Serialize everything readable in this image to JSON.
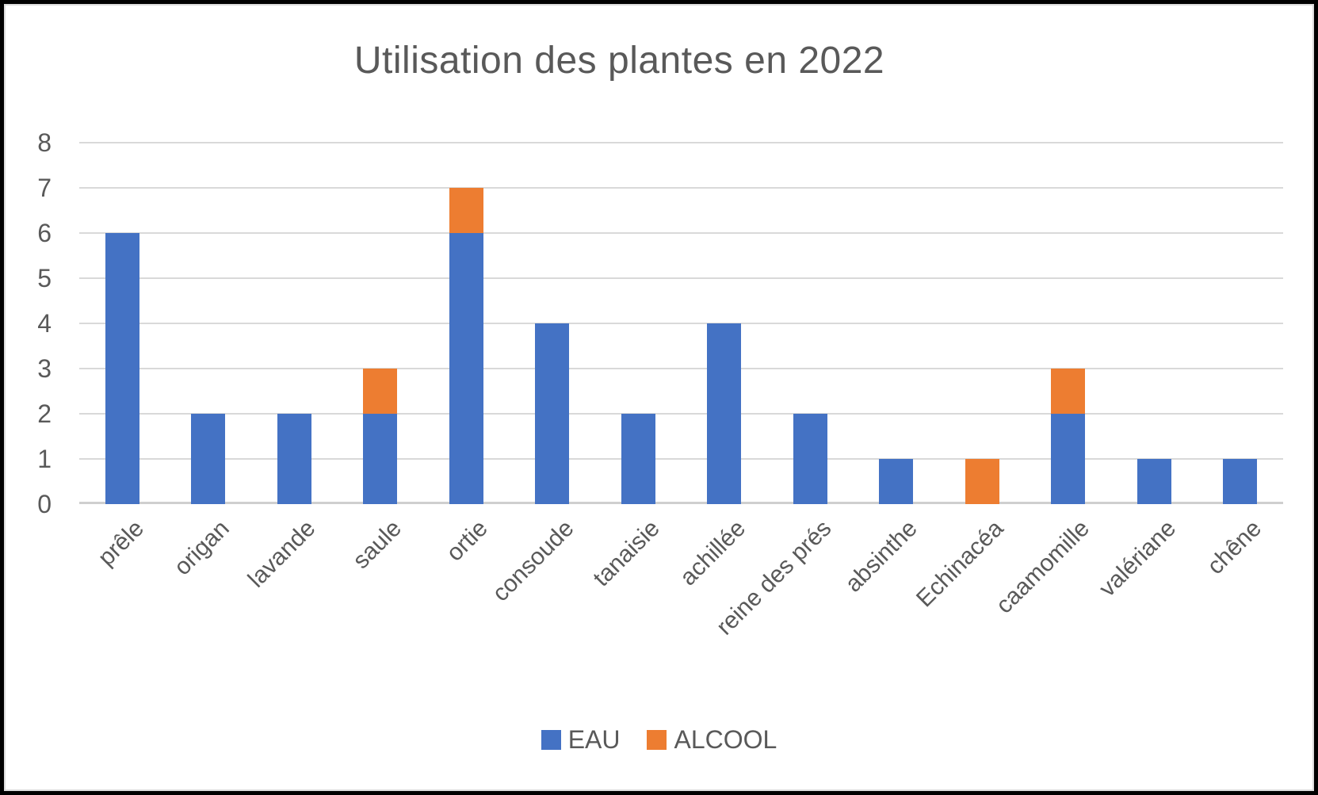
{
  "chart_data": {
    "type": "bar",
    "stacked": true,
    "title": "Utilisation des plantes en 2022",
    "categories": [
      "prêle",
      "origan",
      "lavande",
      "saule",
      "ortie",
      "consoude",
      "tanaisie",
      "achillée",
      "reine des prés",
      "absinthe",
      "Echinacéa",
      "caamomille",
      "valériane",
      "chêne"
    ],
    "series": [
      {
        "name": "EAU",
        "color": "#4472C4",
        "values": [
          6,
          2,
          2,
          2,
          6,
          4,
          2,
          4,
          2,
          1,
          0,
          2,
          1,
          1
        ]
      },
      {
        "name": "ALCOOL",
        "color": "#ED7D31",
        "values": [
          0,
          0,
          0,
          1,
          1,
          0,
          0,
          0,
          0,
          0,
          1,
          1,
          0,
          0
        ]
      }
    ],
    "ylim": [
      0,
      8
    ],
    "ytick_step": 1,
    "yticks": [
      0,
      1,
      2,
      3,
      4,
      5,
      6,
      7,
      8
    ],
    "grid": true,
    "legend_position": "bottom",
    "xlabel": "",
    "ylabel": ""
  },
  "colors": {
    "grid": "#d9d9d9",
    "axis": "#cfcfcf",
    "text": "#595959",
    "background": "#ffffff",
    "outer_border": "#000000"
  }
}
